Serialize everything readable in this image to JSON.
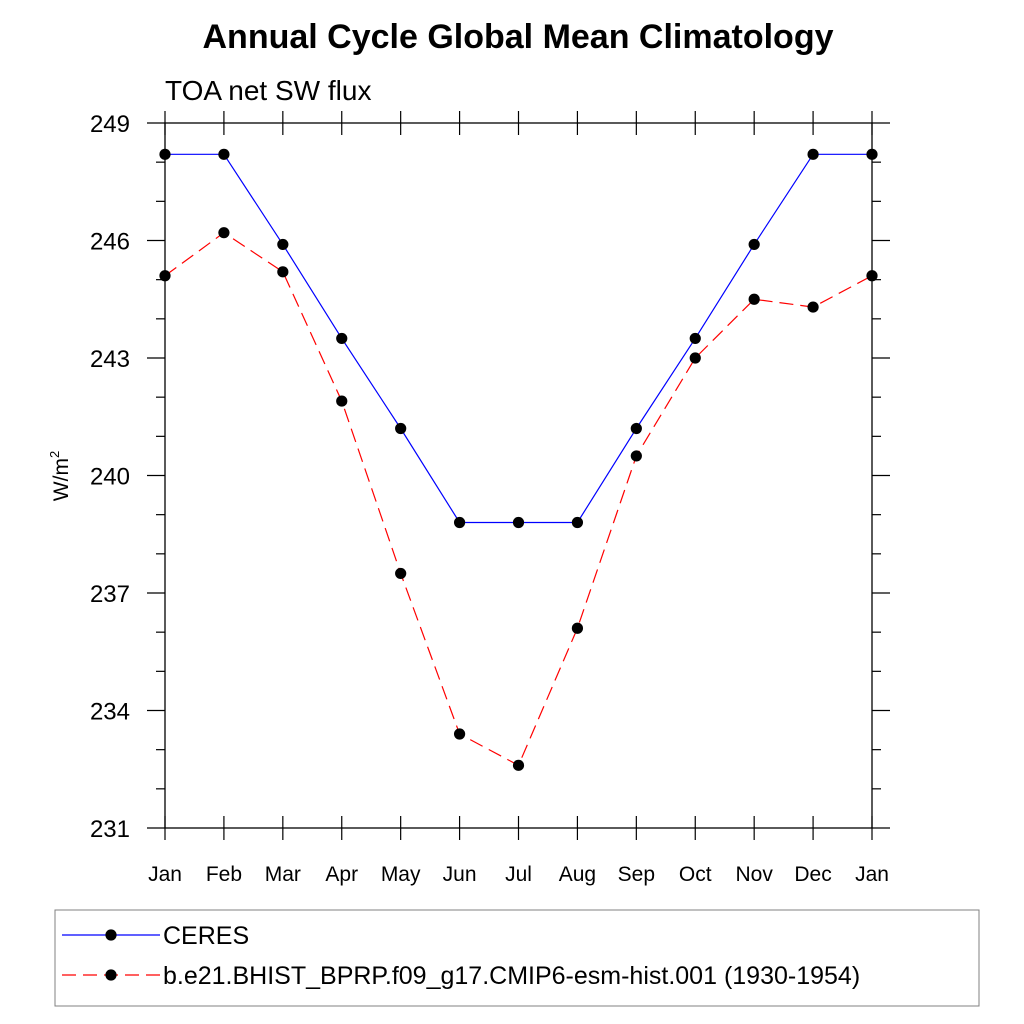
{
  "chart_data": {
    "type": "line",
    "title": "Annual Cycle Global Mean Climatology",
    "subtitle": "TOA net SW flux",
    "ylabel": {
      "base": "W/m",
      "superscript": "2"
    },
    "xlabel": "",
    "categories": [
      "Jan",
      "Feb",
      "Mar",
      "Apr",
      "May",
      "Jun",
      "Jul",
      "Aug",
      "Sep",
      "Oct",
      "Nov",
      "Dec",
      "Jan"
    ],
    "ylim": [
      231,
      249
    ],
    "yticks": [
      231,
      234,
      237,
      240,
      243,
      246,
      249
    ],
    "ytick_labels": [
      "231",
      "234",
      "237",
      "240",
      "243",
      "246",
      "249"
    ],
    "minor_ytick_step": 1,
    "grid": false,
    "legend_position": "bottom",
    "series": [
      {
        "name": "CERES",
        "values": [
          248.2,
          248.2,
          245.9,
          243.5,
          241.2,
          238.8,
          238.8,
          238.8,
          241.2,
          243.5,
          245.9,
          248.2,
          248.2
        ],
        "color": "#0000ff",
        "dash": "solid",
        "marker": "circle"
      },
      {
        "name": "b.e21.BHIST_BPRP.f09_g17.CMIP6-esm-hist.001 (1930-1954)",
        "values": [
          245.1,
          246.2,
          245.2,
          241.9,
          237.5,
          233.4,
          232.6,
          236.1,
          240.5,
          243.0,
          244.5,
          244.3,
          245.1
        ],
        "color": "#ff0000",
        "dash": "dashed",
        "marker": "circle"
      }
    ]
  }
}
